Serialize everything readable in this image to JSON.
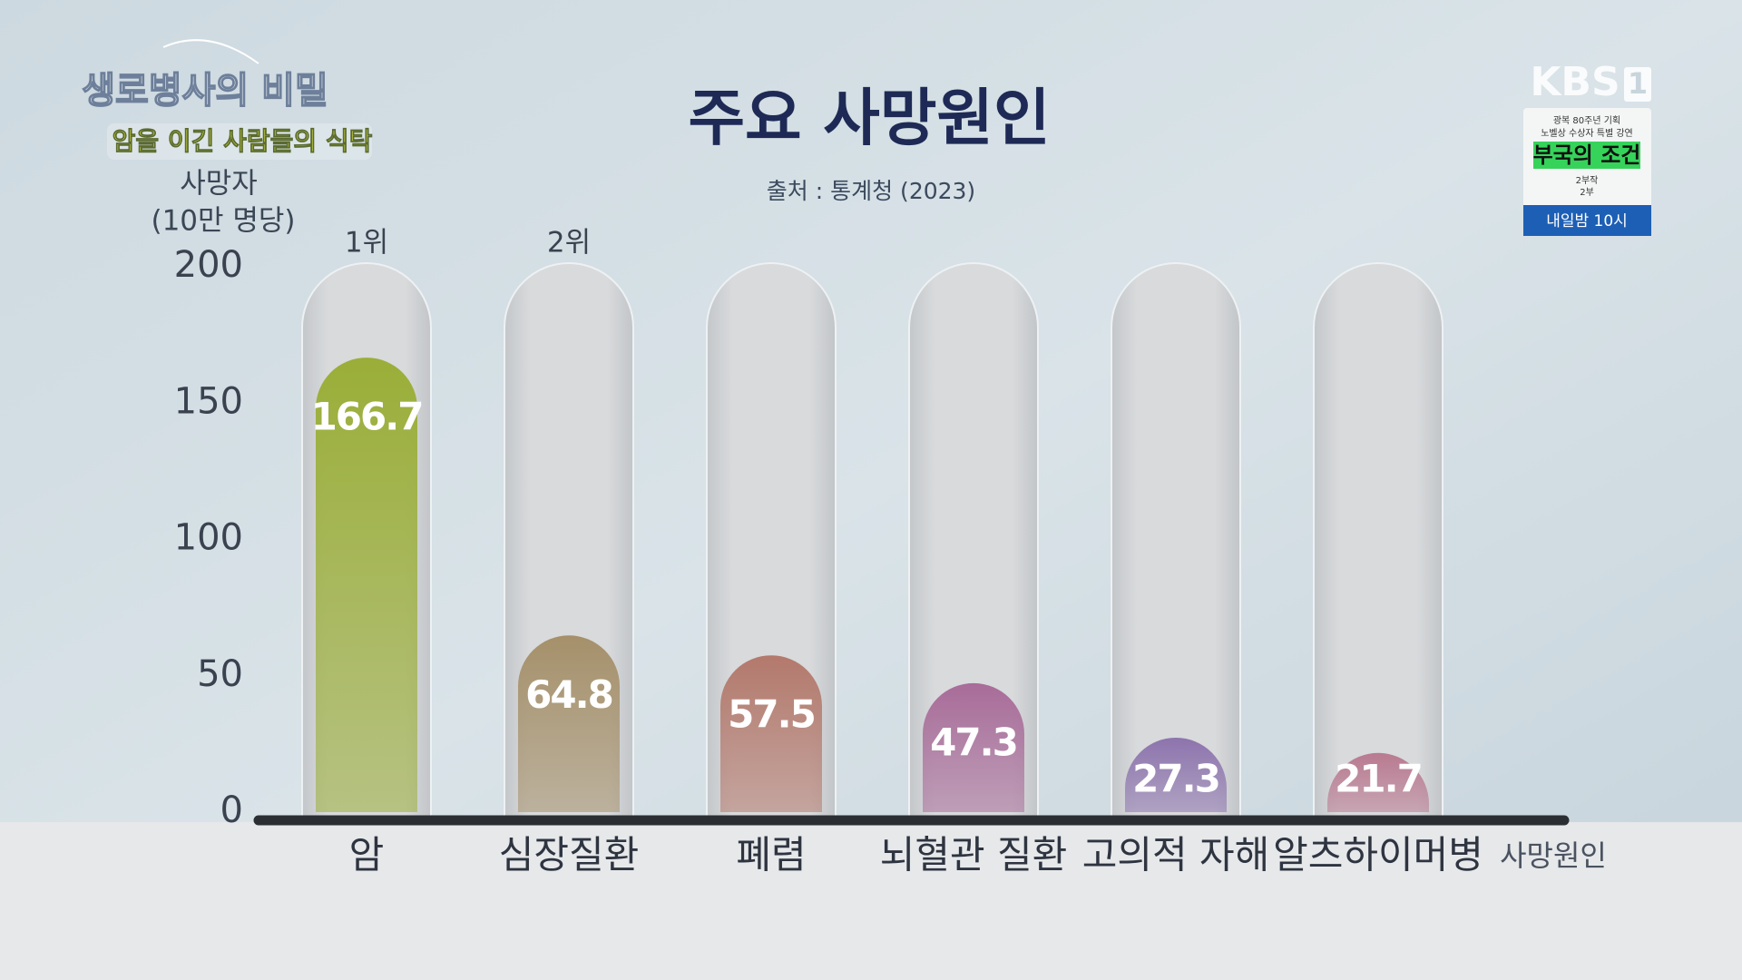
{
  "chart_data": {
    "type": "bar",
    "title": "주요 사망원인",
    "subtitle": "출처 : 통계청 (2023)",
    "ylabel": "사망자",
    "ylabel_unit": "(10만 명당)",
    "xlabel": "사망원인",
    "categories": [
      "암",
      "심장질환",
      "폐렴",
      "뇌혈관 질환",
      "고의적 자해",
      "알츠하이머병"
    ],
    "values": [
      166.7,
      64.8,
      57.5,
      47.3,
      27.3,
      21.7
    ],
    "rank_labels": [
      "1위",
      "2위",
      null,
      null,
      null,
      null
    ],
    "colors": [
      "#9aae38",
      "#a5906a",
      "#b3796c",
      "#a86c99",
      "#8d74ad",
      "#b97a90"
    ],
    "ylim": [
      0,
      200
    ],
    "yticks": [
      0,
      50,
      100,
      150,
      200
    ],
    "grid": false
  },
  "broadcast": {
    "program_title": "생로병사의 비밀",
    "episode_title": "암을 이긴 사람들의 식탁",
    "channel": "KBS",
    "channel_number": "1",
    "promo": {
      "line1": "광복 80주년 기획",
      "line2": "노벨상 수상자 특별 강연",
      "title": "부국의 조건",
      "parts": "2부작",
      "part": "2부",
      "time": "내일밤 10시"
    }
  }
}
